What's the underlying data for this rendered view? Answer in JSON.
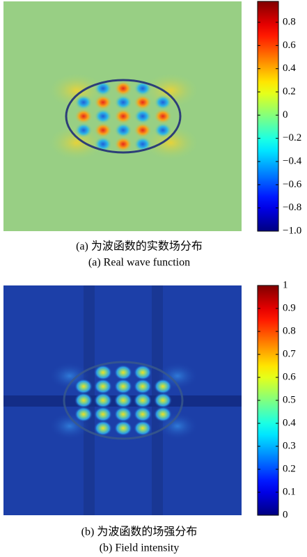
{
  "chart_data": [
    {
      "type": "heatmap",
      "colormap": "jet",
      "zlim": [
        -1,
        0.98
      ],
      "zticks": [
        0.8,
        0.6,
        0.4,
        0.2,
        0,
        {
          "value": -0.2,
          "label": "−0.2"
        },
        {
          "value": -0.4,
          "label": "−0.4"
        },
        {
          "value": -0.6,
          "label": "−0.6"
        },
        {
          "value": -0.8,
          "label": "−0.8"
        },
        {
          "value": -1,
          "label": "−1.0"
        }
      ],
      "captions": [
        "(a) 为波函数的实数场分布",
        "(a) Real wave function"
      ]
    },
    {
      "type": "heatmap",
      "colormap": "jet",
      "zlim": [
        0,
        1
      ],
      "zticks": [
        1,
        0.9,
        0.8,
        0.7,
        0.6,
        0.5,
        0.4,
        0.3,
        0.2,
        0.1,
        0
      ],
      "captions": [
        "(b) 为波函数的场强分布",
        "(b) Field intensity"
      ]
    }
  ]
}
